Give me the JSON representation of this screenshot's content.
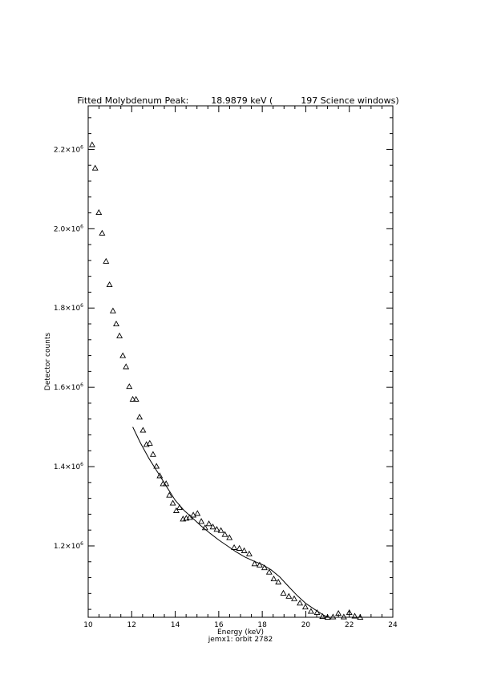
{
  "chart_data": {
    "type": "scatter",
    "title": "Fitted Molybdenum Peak:        18.9879 keV (          197 Science windows)",
    "xlabel": "Energy (keV)",
    "ylabel": "Detector counts",
    "footer": "jemx1: orbit 2782",
    "xlim": [
      10,
      24
    ],
    "ylim": [
      1020000,
      2310000
    ],
    "x_ticks": [
      10,
      12,
      14,
      16,
      18,
      20,
      22,
      24
    ],
    "y_ticks": [
      {
        "value": 1200000,
        "mantissa": "1.2×10",
        "exp": "6"
      },
      {
        "value": 1400000,
        "mantissa": "1.4×10",
        "exp": "6"
      },
      {
        "value": 1600000,
        "mantissa": "1.6×10",
        "exp": "6"
      },
      {
        "value": 1800000,
        "mantissa": "1.8×10",
        "exp": "6"
      },
      {
        "value": 2000000,
        "mantissa": "2.0×10",
        "exp": "6"
      },
      {
        "value": 2200000,
        "mantissa": "2.2×10",
        "exp": "6"
      }
    ],
    "grid": false,
    "legend": "none",
    "marker": "triangle",
    "series": [
      {
        "points": [
          [
            10.18,
            2212000
          ],
          [
            10.32,
            2153000
          ],
          [
            10.49,
            2041000
          ],
          [
            10.64,
            1989000
          ],
          [
            10.82,
            1918000
          ],
          [
            10.98,
            1859000
          ],
          [
            11.14,
            1793000
          ],
          [
            11.29,
            1760000
          ],
          [
            11.44,
            1730000
          ],
          [
            11.59,
            1680000
          ],
          [
            11.74,
            1652000
          ],
          [
            11.89,
            1602000
          ],
          [
            12.05,
            1570000
          ],
          [
            12.2,
            1570000
          ],
          [
            12.36,
            1525000
          ],
          [
            12.52,
            1492000
          ],
          [
            12.68,
            1456000
          ],
          [
            12.83,
            1459000
          ],
          [
            12.98,
            1431000
          ],
          [
            13.14,
            1401000
          ],
          [
            13.29,
            1377000
          ],
          [
            13.44,
            1357000
          ],
          [
            13.58,
            1357000
          ],
          [
            13.73,
            1328000
          ],
          [
            13.89,
            1308000
          ],
          [
            14.05,
            1289000
          ],
          [
            14.2,
            1297000
          ],
          [
            14.36,
            1268000
          ],
          [
            14.51,
            1270000
          ],
          [
            14.67,
            1272000
          ],
          [
            14.83,
            1278000
          ],
          [
            15.02,
            1282000
          ],
          [
            15.2,
            1262000
          ],
          [
            15.37,
            1246000
          ],
          [
            15.55,
            1256000
          ],
          [
            15.73,
            1248000
          ],
          [
            15.91,
            1242000
          ],
          [
            16.1,
            1239000
          ],
          [
            16.28,
            1229000
          ],
          [
            16.49,
            1221000
          ],
          [
            16.71,
            1196000
          ],
          [
            16.95,
            1194000
          ],
          [
            17.17,
            1188000
          ],
          [
            17.4,
            1180000
          ],
          [
            17.65,
            1155000
          ],
          [
            17.88,
            1152000
          ],
          [
            18.1,
            1145000
          ],
          [
            18.32,
            1134000
          ],
          [
            18.53,
            1117000
          ],
          [
            18.74,
            1109000
          ],
          [
            18.97,
            1081000
          ],
          [
            19.22,
            1073000
          ],
          [
            19.47,
            1067000
          ],
          [
            19.73,
            1056000
          ],
          [
            19.98,
            1046000
          ],
          [
            20.24,
            1035000
          ],
          [
            20.52,
            1032000
          ],
          [
            20.77,
            1022000
          ],
          [
            21.0,
            1020000
          ],
          [
            21.25,
            1021000
          ],
          [
            21.5,
            1030000
          ],
          [
            21.75,
            1021000
          ],
          [
            22.0,
            1032000
          ],
          [
            22.25,
            1023000
          ],
          [
            22.5,
            1020000
          ]
        ]
      },
      {
        "type": "line",
        "points": [
          [
            12.05,
            1500000
          ],
          [
            12.4,
            1460000
          ],
          [
            12.8,
            1420000
          ],
          [
            13.2,
            1385000
          ],
          [
            13.6,
            1350000
          ],
          [
            14.0,
            1315000
          ],
          [
            14.4,
            1290000
          ],
          [
            14.8,
            1270000
          ],
          [
            15.2,
            1250000
          ],
          [
            15.6,
            1232000
          ],
          [
            16.0,
            1215000
          ],
          [
            16.4,
            1200000
          ],
          [
            16.8,
            1185000
          ],
          [
            17.2,
            1172000
          ],
          [
            17.6,
            1162000
          ],
          [
            18.0,
            1153000
          ],
          [
            18.4,
            1140000
          ],
          [
            18.8,
            1122000
          ],
          [
            19.2,
            1098000
          ],
          [
            19.6,
            1075000
          ],
          [
            20.0,
            1055000
          ],
          [
            20.4,
            1040000
          ],
          [
            20.8,
            1026000
          ],
          [
            21.0,
            1020000
          ]
        ]
      }
    ]
  }
}
